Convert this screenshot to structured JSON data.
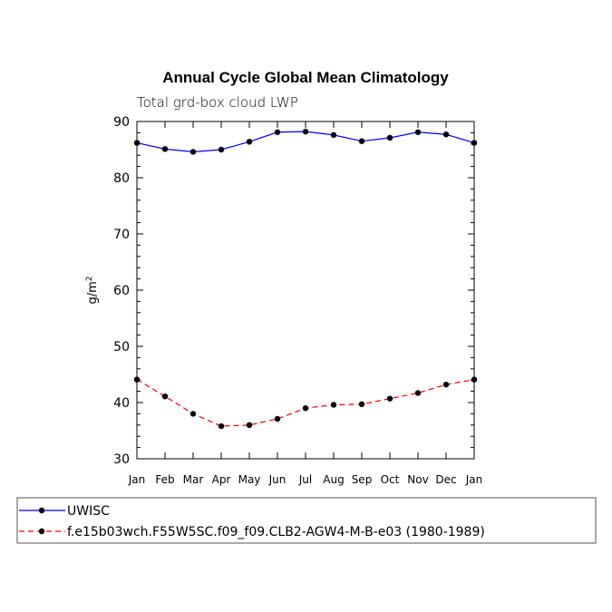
{
  "chart_data": {
    "type": "line",
    "title": "Annual Cycle Global Mean Climatology",
    "subtitle": "Total grd-box cloud LWP",
    "xlabel": "",
    "ylabel": "g/m",
    "ylabel_superscript": "2",
    "categories": [
      "Jan",
      "Feb",
      "Mar",
      "Apr",
      "May",
      "Jun",
      "Jul",
      "Aug",
      "Sep",
      "Oct",
      "Nov",
      "Dec",
      "Jan"
    ],
    "ylim": [
      30,
      90
    ],
    "yticks": [
      30,
      40,
      50,
      60,
      70,
      80,
      90
    ],
    "series": [
      {
        "name": "UWISC",
        "color": "#0000ff",
        "dashed": false,
        "values": [
          86.2,
          85.1,
          84.6,
          85.0,
          86.4,
          88.1,
          88.2,
          87.6,
          86.5,
          87.1,
          88.1,
          87.7,
          86.2
        ]
      },
      {
        "name": "f.e15b03wch.F55W5SC.f09_f09.CLB2-AGW4-M-B-e03 (1980-1989)",
        "color": "#ff0000",
        "dashed": true,
        "values": [
          44.1,
          41.1,
          38.0,
          35.8,
          36.0,
          37.1,
          39.0,
          39.6,
          39.7,
          40.7,
          41.7,
          43.2,
          44.1
        ]
      }
    ]
  }
}
